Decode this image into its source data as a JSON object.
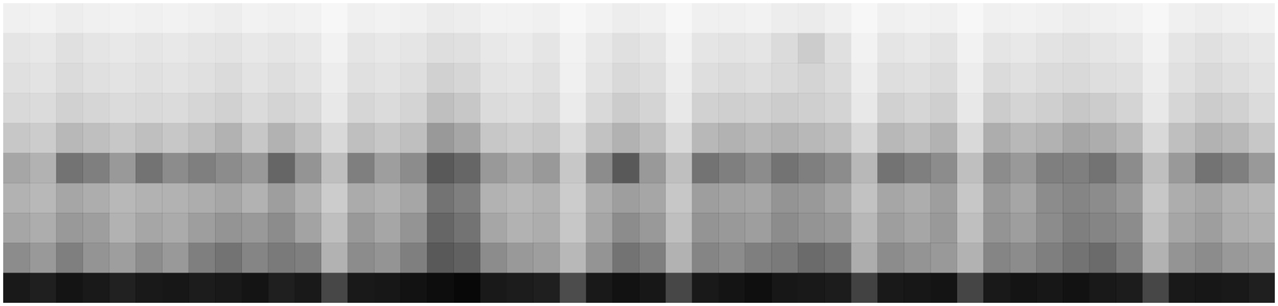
{
  "chart_data": {
    "type": "heatmap",
    "tick_labels": false,
    "color": "#000000",
    "cells": [
      [
        0.06,
        0.05,
        0.07,
        0.06,
        0.05,
        0.06,
        0.05,
        0.06,
        0.07,
        0.05,
        0.06,
        0.05,
        0.03,
        0.06,
        0.05,
        0.06,
        0.08,
        0.07,
        0.05,
        0.05,
        0.06,
        0.03,
        0.05,
        0.07,
        0.06,
        0.03,
        0.06,
        0.06,
        0.05,
        0.07,
        0.08,
        0.06,
        0.03,
        0.06,
        0.05,
        0.06,
        0.03,
        0.06,
        0.05,
        0.06,
        0.07,
        0.06,
        0.05,
        0.03,
        0.06,
        0.07,
        0.06,
        0.05
      ],
      [
        0.1,
        0.09,
        0.12,
        0.1,
        0.09,
        0.1,
        0.09,
        0.1,
        0.11,
        0.09,
        0.1,
        0.09,
        0.05,
        0.1,
        0.09,
        0.1,
        0.13,
        0.12,
        0.09,
        0.08,
        0.1,
        0.05,
        0.09,
        0.12,
        0.1,
        0.05,
        0.1,
        0.11,
        0.1,
        0.14,
        0.2,
        0.12,
        0.05,
        0.1,
        0.09,
        0.11,
        0.05,
        0.1,
        0.09,
        0.11,
        0.12,
        0.1,
        0.09,
        0.05,
        0.1,
        0.12,
        0.1,
        0.09
      ],
      [
        0.12,
        0.11,
        0.14,
        0.12,
        0.11,
        0.12,
        0.11,
        0.12,
        0.14,
        0.11,
        0.13,
        0.11,
        0.07,
        0.12,
        0.11,
        0.13,
        0.18,
        0.16,
        0.11,
        0.1,
        0.12,
        0.06,
        0.11,
        0.15,
        0.13,
        0.07,
        0.13,
        0.14,
        0.13,
        0.15,
        0.17,
        0.14,
        0.07,
        0.13,
        0.12,
        0.14,
        0.07,
        0.14,
        0.12,
        0.14,
        0.15,
        0.13,
        0.12,
        0.07,
        0.12,
        0.15,
        0.13,
        0.11
      ],
      [
        0.15,
        0.14,
        0.18,
        0.16,
        0.14,
        0.15,
        0.14,
        0.16,
        0.18,
        0.14,
        0.17,
        0.15,
        0.09,
        0.16,
        0.14,
        0.17,
        0.25,
        0.22,
        0.14,
        0.13,
        0.15,
        0.08,
        0.15,
        0.2,
        0.17,
        0.09,
        0.18,
        0.19,
        0.18,
        0.2,
        0.19,
        0.17,
        0.09,
        0.18,
        0.16,
        0.19,
        0.09,
        0.2,
        0.17,
        0.19,
        0.22,
        0.2,
        0.17,
        0.09,
        0.16,
        0.2,
        0.18,
        0.14
      ],
      [
        0.22,
        0.2,
        0.28,
        0.25,
        0.22,
        0.25,
        0.22,
        0.25,
        0.3,
        0.22,
        0.3,
        0.24,
        0.15,
        0.25,
        0.22,
        0.25,
        0.4,
        0.35,
        0.22,
        0.2,
        0.22,
        0.14,
        0.24,
        0.3,
        0.25,
        0.15,
        0.28,
        0.3,
        0.28,
        0.3,
        0.28,
        0.25,
        0.16,
        0.28,
        0.25,
        0.3,
        0.15,
        0.32,
        0.28,
        0.3,
        0.35,
        0.32,
        0.28,
        0.15,
        0.25,
        0.3,
        0.28,
        0.22
      ],
      [
        0.35,
        0.3,
        0.55,
        0.5,
        0.4,
        0.55,
        0.45,
        0.5,
        0.45,
        0.4,
        0.6,
        0.42,
        0.25,
        0.5,
        0.38,
        0.45,
        0.65,
        0.6,
        0.4,
        0.35,
        0.4,
        0.22,
        0.45,
        0.65,
        0.4,
        0.25,
        0.55,
        0.5,
        0.45,
        0.55,
        0.5,
        0.45,
        0.28,
        0.55,
        0.5,
        0.45,
        0.25,
        0.45,
        0.4,
        0.5,
        0.5,
        0.55,
        0.45,
        0.25,
        0.4,
        0.55,
        0.5,
        0.4
      ],
      [
        0.3,
        0.28,
        0.35,
        0.32,
        0.28,
        0.3,
        0.3,
        0.32,
        0.35,
        0.3,
        0.38,
        0.3,
        0.2,
        0.33,
        0.3,
        0.35,
        0.55,
        0.5,
        0.3,
        0.28,
        0.3,
        0.2,
        0.32,
        0.38,
        0.35,
        0.22,
        0.38,
        0.36,
        0.35,
        0.42,
        0.4,
        0.35,
        0.24,
        0.35,
        0.32,
        0.38,
        0.22,
        0.4,
        0.35,
        0.45,
        0.48,
        0.45,
        0.4,
        0.22,
        0.32,
        0.35,
        0.3,
        0.28
      ],
      [
        0.35,
        0.32,
        0.4,
        0.38,
        0.3,
        0.35,
        0.33,
        0.38,
        0.42,
        0.4,
        0.45,
        0.36,
        0.25,
        0.4,
        0.35,
        0.42,
        0.6,
        0.55,
        0.35,
        0.3,
        0.32,
        0.22,
        0.35,
        0.45,
        0.4,
        0.25,
        0.42,
        0.4,
        0.38,
        0.45,
        0.42,
        0.4,
        0.28,
        0.38,
        0.35,
        0.4,
        0.25,
        0.42,
        0.38,
        0.45,
        0.5,
        0.48,
        0.45,
        0.25,
        0.35,
        0.38,
        0.32,
        0.3
      ],
      [
        0.45,
        0.4,
        0.5,
        0.42,
        0.38,
        0.45,
        0.4,
        0.5,
        0.55,
        0.48,
        0.52,
        0.5,
        0.3,
        0.45,
        0.42,
        0.5,
        0.65,
        0.62,
        0.45,
        0.4,
        0.38,
        0.28,
        0.42,
        0.55,
        0.5,
        0.3,
        0.48,
        0.45,
        0.5,
        0.52,
        0.58,
        0.55,
        0.32,
        0.45,
        0.42,
        0.4,
        0.3,
        0.48,
        0.45,
        0.5,
        0.55,
        0.58,
        0.5,
        0.3,
        0.42,
        0.45,
        0.4,
        0.38
      ],
      [
        0.9,
        0.88,
        0.92,
        0.9,
        0.87,
        0.9,
        0.91,
        0.89,
        0.9,
        0.92,
        0.88,
        0.9,
        0.72,
        0.9,
        0.91,
        0.93,
        0.95,
        0.97,
        0.9,
        0.89,
        0.88,
        0.7,
        0.9,
        0.93,
        0.91,
        0.72,
        0.9,
        0.92,
        0.94,
        0.91,
        0.9,
        0.89,
        0.74,
        0.9,
        0.91,
        0.92,
        0.73,
        0.9,
        0.92,
        0.91,
        0.93,
        0.9,
        0.89,
        0.72,
        0.9,
        0.91,
        0.9,
        0.88
      ]
    ]
  }
}
